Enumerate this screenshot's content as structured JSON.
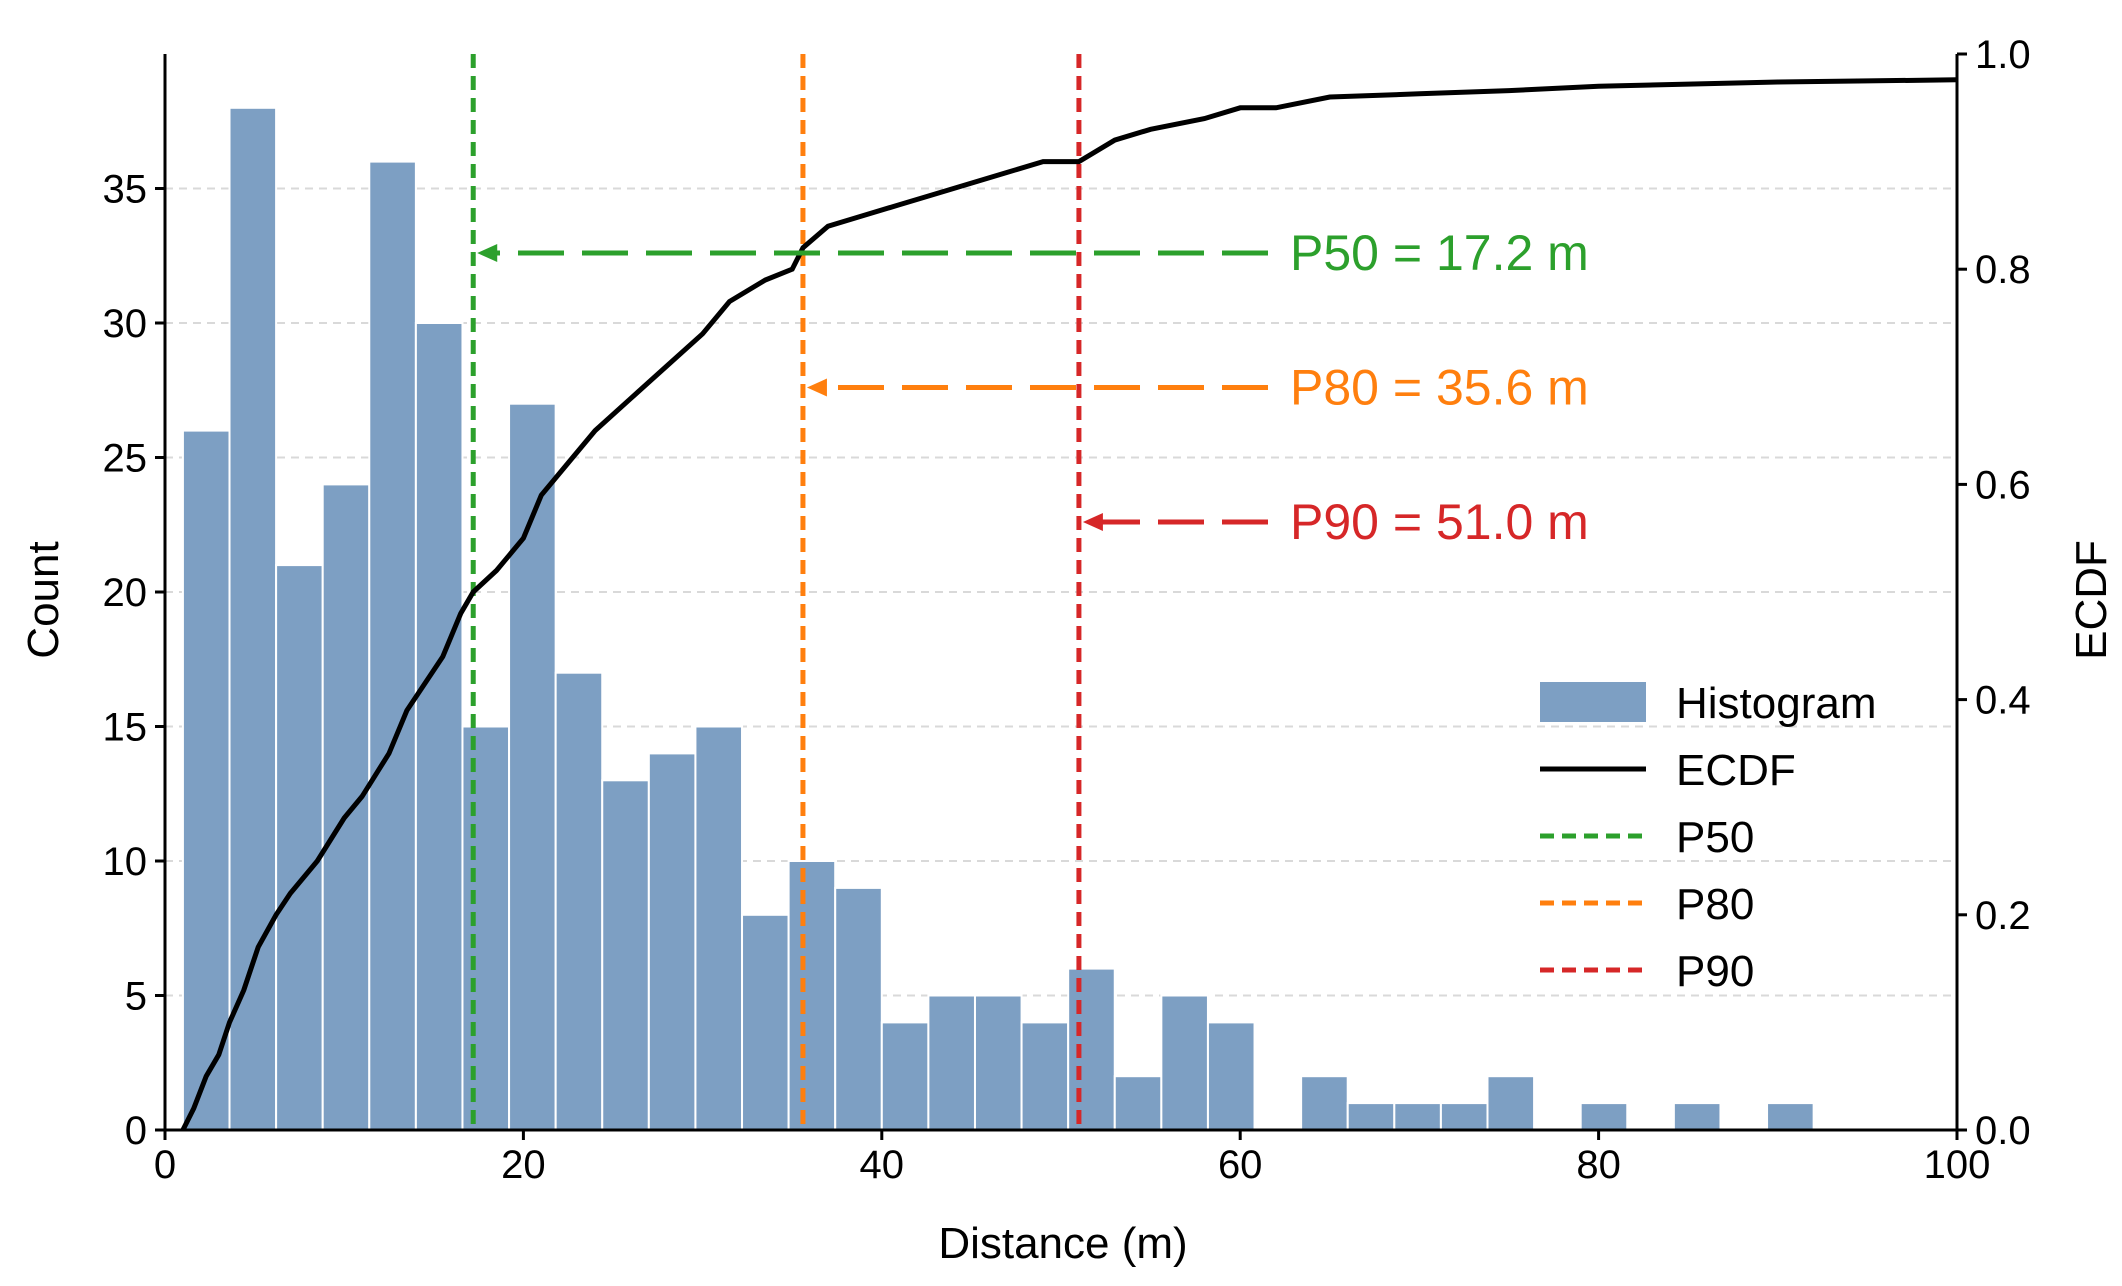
{
  "chart_data": {
    "type": "histogram+ecdf",
    "xlabel": "Distance (m)",
    "ylabel_left": "Count",
    "ylabel_right": "ECDF",
    "xlim": [
      0,
      100
    ],
    "ylim_left": [
      0,
      40
    ],
    "ylim_right": [
      0,
      1.0
    ],
    "x_ticks": [
      0,
      20,
      40,
      60,
      80,
      100
    ],
    "x_tick_labels": [
      "0",
      "20",
      "40",
      "60",
      "80",
      "100"
    ],
    "y_left_ticks": [
      0,
      5,
      10,
      15,
      20,
      25,
      30,
      35
    ],
    "y_left_tick_labels": [
      "0",
      "5",
      "10",
      "15",
      "20",
      "25",
      "30",
      "35"
    ],
    "y_right_ticks": [
      0,
      0.2,
      0.4,
      0.6,
      0.8,
      1.0
    ],
    "y_right_tick_labels": [
      "0.0",
      "0.2",
      "0.4",
      "0.6",
      "0.8",
      "1.0"
    ],
    "grid": "horizontal dashed",
    "histogram": {
      "name": "Histogram",
      "color": "#7d9fc3",
      "bin_start": 1.0,
      "bin_width": 2.6,
      "counts": [
        26,
        38,
        21,
        24,
        36,
        30,
        15,
        27,
        17,
        13,
        14,
        15,
        8,
        10,
        9,
        4,
        5,
        5,
        4,
        6,
        2,
        5,
        4,
        0,
        2,
        1,
        1,
        1,
        2,
        0,
        1,
        0,
        1,
        0,
        1
      ]
    },
    "ecdf": {
      "name": "ECDF",
      "color": "#000000",
      "x": [
        1.0,
        1.6,
        2.3,
        3.0,
        3.6,
        4.4,
        5.2,
        6.2,
        7.0,
        8.5,
        10.0,
        11.0,
        12.5,
        13.5,
        15.5,
        16.5,
        17.2,
        18.5,
        20.0,
        21.0,
        22.5,
        24.0,
        26.0,
        28.0,
        30.0,
        31.5,
        33.5,
        35.0,
        35.6,
        37.0,
        39.0,
        41.0,
        43.0,
        45.0,
        47.0,
        49.0,
        51.0,
        53.0,
        55.0,
        58.0,
        60.0,
        62.0,
        65.0,
        70.0,
        75.0,
        80.0,
        85.0,
        90.0,
        95.0,
        100.0
      ],
      "y": [
        0.0,
        0.02,
        0.05,
        0.07,
        0.1,
        0.13,
        0.17,
        0.2,
        0.22,
        0.25,
        0.29,
        0.31,
        0.35,
        0.39,
        0.44,
        0.48,
        0.5,
        0.52,
        0.55,
        0.59,
        0.62,
        0.65,
        0.68,
        0.71,
        0.74,
        0.77,
        0.79,
        0.8,
        0.82,
        0.84,
        0.85,
        0.86,
        0.87,
        0.88,
        0.89,
        0.9,
        0.9,
        0.92,
        0.93,
        0.94,
        0.95,
        0.95,
        0.96,
        0.963,
        0.966,
        0.97,
        0.972,
        0.974,
        0.975,
        0.976
      ]
    },
    "percentiles": [
      {
        "name": "P50",
        "value": 17.2,
        "color": "#2ca02c",
        "label": "P50 = 17.2 m",
        "ecdf_level": 0.815
      },
      {
        "name": "P80",
        "value": 35.6,
        "color": "#ff7f0e",
        "label": "P80 = 35.6 m",
        "ecdf_level": 0.69
      },
      {
        "name": "P90",
        "value": 51.0,
        "color": "#d62728",
        "label": "P90 = 51.0 m",
        "ecdf_level": 0.565
      }
    ],
    "legend": {
      "position": "center-right",
      "entries": [
        {
          "label": "Histogram",
          "kind": "patch",
          "color": "#7d9fc3"
        },
        {
          "label": "ECDF",
          "kind": "line",
          "color": "#000000"
        },
        {
          "label": "P50",
          "kind": "dashed",
          "color": "#2ca02c"
        },
        {
          "label": "P80",
          "kind": "dashed",
          "color": "#ff7f0e"
        },
        {
          "label": "P90",
          "kind": "dashed",
          "color": "#d62728"
        }
      ]
    }
  }
}
